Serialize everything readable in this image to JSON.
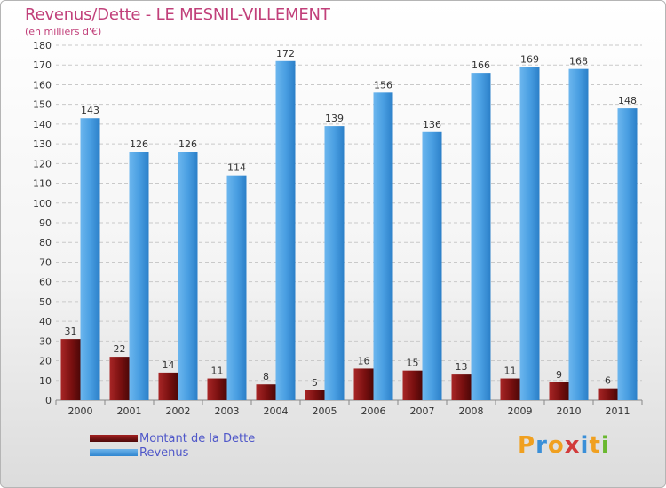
{
  "chart_data": {
    "type": "bar",
    "title": "Revenus/Dette - LE MESNIL-VILLEMENT",
    "subtitle": "(en milliers d'€)",
    "categories": [
      "2000",
      "2001",
      "2002",
      "2003",
      "2004",
      "2005",
      "2006",
      "2007",
      "2008",
      "2009",
      "2010",
      "2011"
    ],
    "series": [
      {
        "name": "Montant de la Dette",
        "color": "#7a1010",
        "values": [
          31,
          22,
          14,
          11,
          8,
          5,
          16,
          15,
          13,
          11,
          9,
          6
        ]
      },
      {
        "name": "Revenus",
        "color": "#4a9fe2",
        "values": [
          143,
          126,
          126,
          114,
          172,
          139,
          156,
          136,
          166,
          169,
          168,
          148
        ]
      }
    ],
    "ylim": [
      0,
      180
    ],
    "yticks": [
      0,
      10,
      20,
      30,
      40,
      50,
      60,
      70,
      80,
      90,
      100,
      110,
      120,
      130,
      140,
      150,
      160,
      170,
      180
    ],
    "grid": true,
    "legend": "bottom-left"
  },
  "legend": {
    "dette_label": "Montant de la Dette",
    "revenus_label": "Revenus"
  },
  "brand": {
    "letters": [
      "P",
      "r",
      "o",
      "x",
      "i",
      "t",
      "i"
    ],
    "colors": [
      "#f0a020",
      "#3a8fd8",
      "#f0a020",
      "#d23a3a",
      "#3a8fd8",
      "#f0a020",
      "#6ab830"
    ]
  }
}
